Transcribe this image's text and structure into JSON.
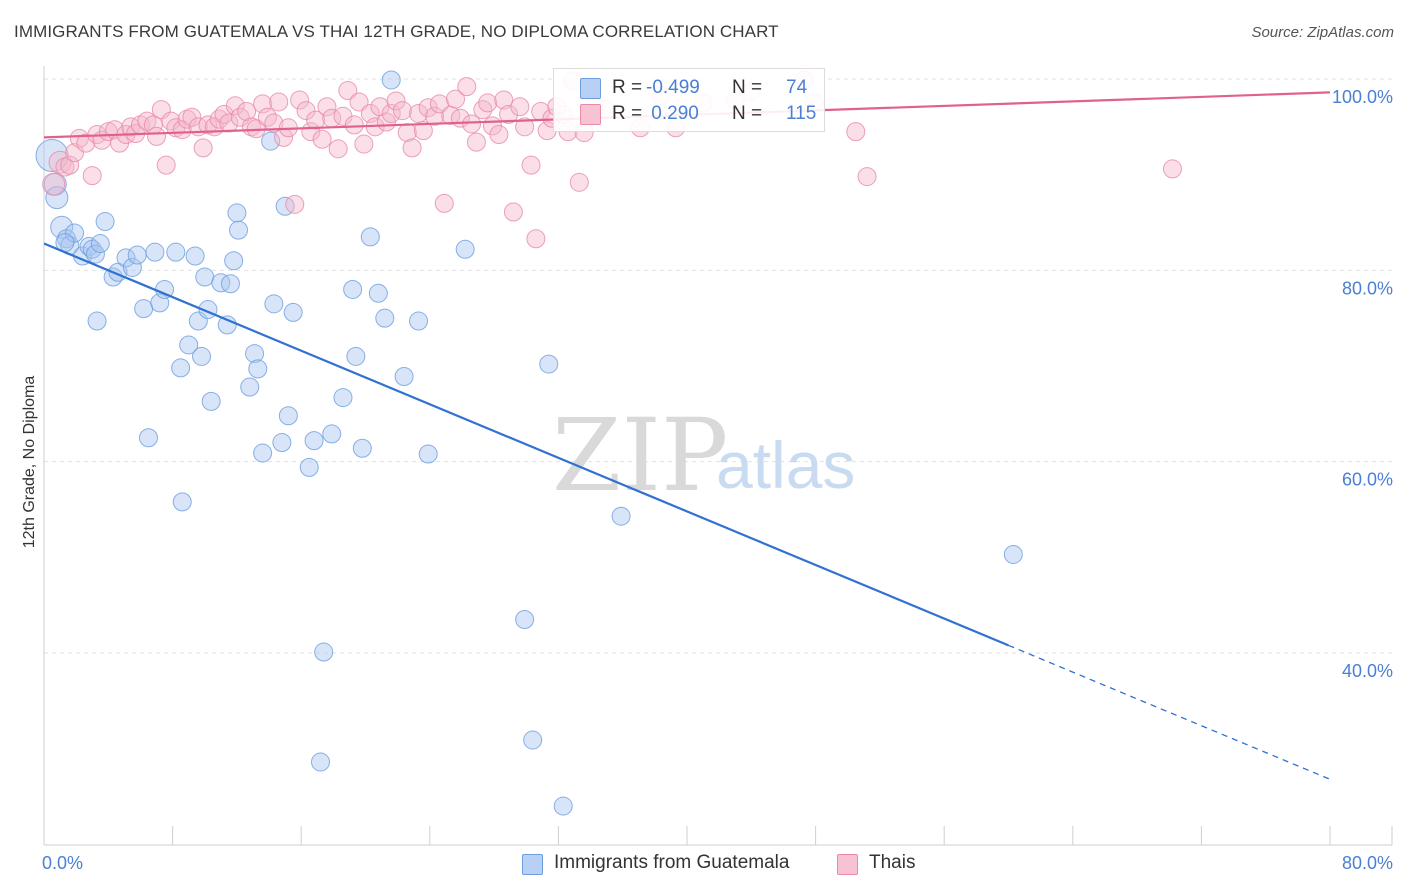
{
  "title": "IMMIGRANTS FROM GUATEMALA VS THAI 12TH GRADE, NO DIPLOMA CORRELATION CHART",
  "source": "Source: ZipAtlas.com",
  "watermark": {
    "zip": "ZIP",
    "atlas": "atlas"
  },
  "legend": {
    "r_label": "R =",
    "n_label": "N =",
    "rows": [
      {
        "r": "-0.499",
        "n": "74"
      },
      {
        "r": " 0.290",
        "n": "115"
      }
    ]
  },
  "bottom_legend": [
    "Immigrants from Guatemala",
    "Thais"
  ],
  "chart_data": {
    "type": "scatter",
    "title": "IMMIGRANTS FROM GUATEMALA VS THAI 12TH GRADE, NO DIPLOMA CORRELATION CHART",
    "xlabel": "",
    "ylabel": "12th Grade, No Diploma",
    "xlim": [
      0,
      80
    ],
    "ylim": [
      20,
      102
    ],
    "x_tick_labels": [
      "0.0%",
      "80.0%"
    ],
    "y_ticks": [
      40,
      60,
      80,
      100
    ],
    "y_tick_labels": [
      "40.0%",
      "60.0%",
      "80.0%",
      "100.0%"
    ],
    "grid": true,
    "legend_position": "top-center",
    "series": [
      {
        "name": "Immigrants from Guatemala",
        "color": "#6b9de0",
        "fill": "#a9c6ef",
        "r": -0.499,
        "n": 74,
        "trend": {
          "x": [
            0,
            60,
            80
          ],
          "y": [
            82.8,
            40.8,
            26.8
          ],
          "dashed_from_x": 60
        },
        "points": [
          [
            0.5,
            92.0
          ],
          [
            0.7,
            89.0
          ],
          [
            0.8,
            87.6
          ],
          [
            1.1,
            84.5
          ],
          [
            1.4,
            83.3
          ],
          [
            1.6,
            82.6
          ],
          [
            1.9,
            83.9
          ],
          [
            2.4,
            81.5
          ],
          [
            2.8,
            82.5
          ],
          [
            3.0,
            82.2
          ],
          [
            3.2,
            81.7
          ],
          [
            3.5,
            82.8
          ],
          [
            3.8,
            85.1
          ],
          [
            4.3,
            79.3
          ],
          [
            4.6,
            79.8
          ],
          [
            5.1,
            81.3
          ],
          [
            5.5,
            80.3
          ],
          [
            5.8,
            81.6
          ],
          [
            6.2,
            76.0
          ],
          [
            6.9,
            81.9
          ],
          [
            7.2,
            76.6
          ],
          [
            7.5,
            78.0
          ],
          [
            8.2,
            81.9
          ],
          [
            8.5,
            69.8
          ],
          [
            9.0,
            72.2
          ],
          [
            9.4,
            81.5
          ],
          [
            9.6,
            74.7
          ],
          [
            10.0,
            79.3
          ],
          [
            10.2,
            75.9
          ],
          [
            10.4,
            66.3
          ],
          [
            11.0,
            78.7
          ],
          [
            11.4,
            74.3
          ],
          [
            11.6,
            78.6
          ],
          [
            11.8,
            81.0
          ],
          [
            12.1,
            84.2
          ],
          [
            12.8,
            67.8
          ],
          [
            13.1,
            71.3
          ],
          [
            13.3,
            69.7
          ],
          [
            13.6,
            60.9
          ],
          [
            14.1,
            93.5
          ],
          [
            14.3,
            76.5
          ],
          [
            14.8,
            62.0
          ],
          [
            15.0,
            86.7
          ],
          [
            15.2,
            64.8
          ],
          [
            15.5,
            75.6
          ],
          [
            16.5,
            59.4
          ],
          [
            16.8,
            62.2
          ],
          [
            17.2,
            28.6
          ],
          [
            17.4,
            40.1
          ],
          [
            17.9,
            62.9
          ],
          [
            18.6,
            66.7
          ],
          [
            19.2,
            78.0
          ],
          [
            19.4,
            71.0
          ],
          [
            19.8,
            61.4
          ],
          [
            20.3,
            83.5
          ],
          [
            20.8,
            77.6
          ],
          [
            21.2,
            75.0
          ],
          [
            21.6,
            99.9
          ],
          [
            22.4,
            68.9
          ],
          [
            23.3,
            74.7
          ],
          [
            23.9,
            60.8
          ],
          [
            26.2,
            82.2
          ],
          [
            29.9,
            43.5
          ],
          [
            30.4,
            30.9
          ],
          [
            31.4,
            70.2
          ],
          [
            32.3,
            24.0
          ],
          [
            35.9,
            54.3
          ],
          [
            60.3,
            50.3
          ],
          [
            1.3,
            82.9
          ],
          [
            3.3,
            74.7
          ],
          [
            6.5,
            62.5
          ],
          [
            8.6,
            55.8
          ],
          [
            12.0,
            86.0
          ],
          [
            9.8,
            71.0
          ]
        ]
      },
      {
        "name": "Thais",
        "color": "#e98aa9",
        "fill": "#f5b8cb",
        "r": 0.29,
        "n": 115,
        "trend": {
          "x": [
            0,
            80
          ],
          "y": [
            93.9,
            98.6
          ]
        },
        "points": [
          [
            0.6,
            89.0
          ],
          [
            1.0,
            91.3
          ],
          [
            1.3,
            90.8
          ],
          [
            1.6,
            91.0
          ],
          [
            1.9,
            92.3
          ],
          [
            2.2,
            93.8
          ],
          [
            2.6,
            93.3
          ],
          [
            3.0,
            89.9
          ],
          [
            3.3,
            94.2
          ],
          [
            3.6,
            93.6
          ],
          [
            4.0,
            94.5
          ],
          [
            4.4,
            94.7
          ],
          [
            4.7,
            93.3
          ],
          [
            5.1,
            94.2
          ],
          [
            5.4,
            95.0
          ],
          [
            5.7,
            94.3
          ],
          [
            6.0,
            95.2
          ],
          [
            6.4,
            95.6
          ],
          [
            6.8,
            95.2
          ],
          [
            7.0,
            94.0
          ],
          [
            7.3,
            96.8
          ],
          [
            7.6,
            91.0
          ],
          [
            7.9,
            95.6
          ],
          [
            8.2,
            94.9
          ],
          [
            8.6,
            94.7
          ],
          [
            8.9,
            95.8
          ],
          [
            9.2,
            96.0
          ],
          [
            9.6,
            95.0
          ],
          [
            9.9,
            92.8
          ],
          [
            10.2,
            95.2
          ],
          [
            10.6,
            95.0
          ],
          [
            10.9,
            95.8
          ],
          [
            11.2,
            96.3
          ],
          [
            11.5,
            95.4
          ],
          [
            11.9,
            97.2
          ],
          [
            12.2,
            96.0
          ],
          [
            12.6,
            96.6
          ],
          [
            12.9,
            95.0
          ],
          [
            13.2,
            94.8
          ],
          [
            13.6,
            97.4
          ],
          [
            13.9,
            96.0
          ],
          [
            14.3,
            95.4
          ],
          [
            14.6,
            97.6
          ],
          [
            14.9,
            93.9
          ],
          [
            15.2,
            94.9
          ],
          [
            15.6,
            86.9
          ],
          [
            15.9,
            97.8
          ],
          [
            16.3,
            96.7
          ],
          [
            16.6,
            94.5
          ],
          [
            16.9,
            95.7
          ],
          [
            17.3,
            93.7
          ],
          [
            17.6,
            97.1
          ],
          [
            17.9,
            95.9
          ],
          [
            18.3,
            92.7
          ],
          [
            18.6,
            96.1
          ],
          [
            18.9,
            98.8
          ],
          [
            19.3,
            95.2
          ],
          [
            19.6,
            97.6
          ],
          [
            19.9,
            93.2
          ],
          [
            20.3,
            96.4
          ],
          [
            20.6,
            95.0
          ],
          [
            20.9,
            97.1
          ],
          [
            21.3,
            95.5
          ],
          [
            21.6,
            96.4
          ],
          [
            21.9,
            97.7
          ],
          [
            22.3,
            96.7
          ],
          [
            22.6,
            94.4
          ],
          [
            22.9,
            92.8
          ],
          [
            23.3,
            96.4
          ],
          [
            23.6,
            94.6
          ],
          [
            23.9,
            97.0
          ],
          [
            24.3,
            96.1
          ],
          [
            24.6,
            97.4
          ],
          [
            24.9,
            87.0
          ],
          [
            25.3,
            96.2
          ],
          [
            25.6,
            97.9
          ],
          [
            25.9,
            95.9
          ],
          [
            26.3,
            99.2
          ],
          [
            26.6,
            95.3
          ],
          [
            26.9,
            93.4
          ],
          [
            27.3,
            96.8
          ],
          [
            27.6,
            97.5
          ],
          [
            27.9,
            95.1
          ],
          [
            28.3,
            94.2
          ],
          [
            28.6,
            97.8
          ],
          [
            28.9,
            96.3
          ],
          [
            29.2,
            86.1
          ],
          [
            29.6,
            97.1
          ],
          [
            29.9,
            95.0
          ],
          [
            30.3,
            91.0
          ],
          [
            30.6,
            83.3
          ],
          [
            30.9,
            96.6
          ],
          [
            31.3,
            94.6
          ],
          [
            31.6,
            95.9
          ],
          [
            31.9,
            97.1
          ],
          [
            32.3,
            96.3
          ],
          [
            32.6,
            94.5
          ],
          [
            32.9,
            99.8
          ],
          [
            33.3,
            89.2
          ],
          [
            33.6,
            94.4
          ],
          [
            34.3,
            97.3
          ],
          [
            35.0,
            96.8
          ],
          [
            37.1,
            94.9
          ],
          [
            38.4,
            98.2
          ],
          [
            39.3,
            94.9
          ],
          [
            41.0,
            97.5
          ],
          [
            43.0,
            97.8
          ],
          [
            44.0,
            98.7
          ],
          [
            47.3,
            99.9
          ],
          [
            47.9,
            97.5
          ],
          [
            50.5,
            94.5
          ],
          [
            51.2,
            89.8
          ],
          [
            70.2,
            90.6
          ]
        ]
      }
    ]
  }
}
